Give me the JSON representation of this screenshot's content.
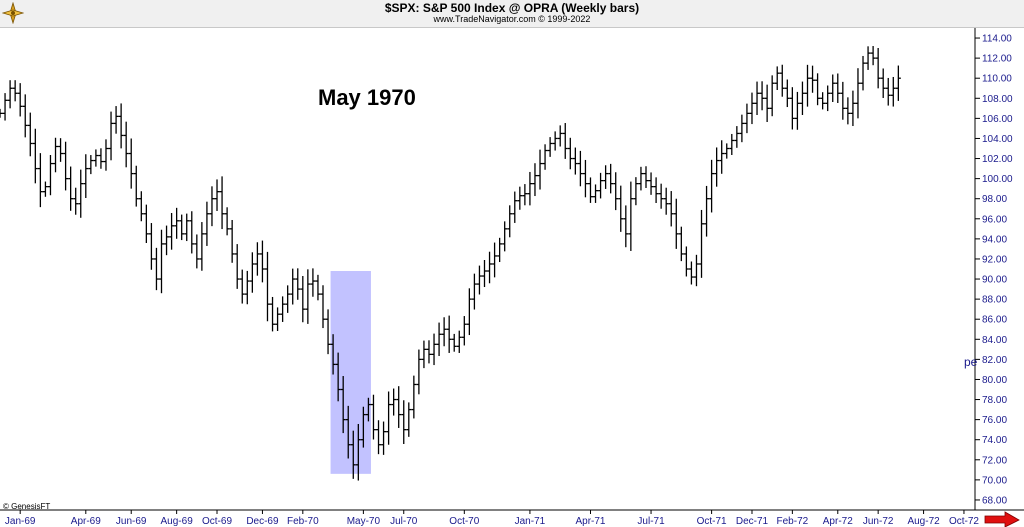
{
  "header": {
    "title": "$SPX:  S&P 500 Index @ OPRA  (Weekly bars)",
    "subtitle": "www.TradeNavigator.com © 1999-2022"
  },
  "icons": {
    "logo": "navigator-compass-icon",
    "scroll_arrow": "red-right-arrow-icon"
  },
  "colors": {
    "highlight": "#c2c2ff",
    "axis_text": "#1a1a8c",
    "bars": "#000000",
    "arrow": "#e01010"
  },
  "chart_data": {
    "type": "ohlc",
    "title": "$SPX:  S&P 500 Index @ OPRA  (Weekly bars)",
    "annotation": "May 1970",
    "footer": "© GenesisFT",
    "edge_label": "pe",
    "ylim": [
      67,
      115
    ],
    "y_ticks": [
      "68.00",
      "70.00",
      "72.00",
      "74.00",
      "76.00",
      "78.00",
      "80.00",
      "82.00",
      "84.00",
      "86.00",
      "88.00",
      "90.00",
      "92.00",
      "94.00",
      "96.00",
      "98.00",
      "100.00",
      "102.00",
      "104.00",
      "106.00",
      "108.00",
      "110.00",
      "112.00",
      "114.00"
    ],
    "x_ticks": [
      {
        "label": "Jan-69",
        "week": 5
      },
      {
        "label": "Apr-69",
        "week": 18
      },
      {
        "label": "Jun-69",
        "week": 27
      },
      {
        "label": "Aug-69",
        "week": 36
      },
      {
        "label": "Oct-69",
        "week": 44
      },
      {
        "label": "Dec-69",
        "week": 53
      },
      {
        "label": "Feb-70",
        "week": 61
      },
      {
        "label": "May-70",
        "week": 73
      },
      {
        "label": "Jul-70",
        "week": 81
      },
      {
        "label": "Oct-70",
        "week": 93
      },
      {
        "label": "Jan-71",
        "week": 106
      },
      {
        "label": "Apr-71",
        "week": 118
      },
      {
        "label": "Jul-71",
        "week": 130
      },
      {
        "label": "Oct-71",
        "week": 142
      },
      {
        "label": "Dec-71",
        "week": 150
      },
      {
        "label": "Feb-72",
        "week": 158
      },
      {
        "label": "Apr-72",
        "week": 167
      },
      {
        "label": "Jun-72",
        "week": 175
      },
      {
        "label": "Aug-72",
        "week": 184
      },
      {
        "label": "Oct-72",
        "week": 192
      }
    ],
    "highlight": {
      "week_start": 66.5,
      "week_end": 74.5,
      "low": 70.6,
      "high": 90.8
    },
    "weekly_close": [
      106.5,
      107.8,
      109.0,
      108.5,
      107.2,
      105.3,
      103.5,
      101.0,
      98.7,
      99.2,
      101.5,
      103.2,
      102.5,
      100.0,
      98.0,
      97.5,
      99.5,
      101.0,
      101.8,
      102.3,
      101.7,
      103.0,
      105.5,
      106.2,
      104.3,
      102.5,
      100.5,
      98.0,
      96.5,
      94.5,
      92.0,
      90.0,
      93.5,
      94.2,
      95.3,
      95.8,
      94.5,
      95.8,
      93.5,
      92.0,
      94.5,
      96.5,
      98.0,
      98.7,
      96.5,
      95.0,
      92.5,
      90.0,
      88.5,
      89.8,
      91.5,
      92.5,
      91.0,
      87.5,
      85.5,
      86.5,
      87.5,
      88.5,
      90.0,
      89.0,
      87.0,
      89.5,
      89.8,
      88.5,
      86.0,
      83.5,
      81.5,
      79.0,
      76.0,
      73.5,
      71.5,
      74.0,
      76.5,
      77.5,
      75.0,
      73.5,
      74.8,
      77.5,
      78.0,
      76.5,
      75.0,
      77.0,
      79.5,
      82.0,
      83.0,
      82.5,
      83.5,
      84.5,
      85.0,
      84.0,
      83.3,
      84.2,
      85.5,
      88.0,
      89.5,
      90.3,
      90.8,
      91.5,
      92.3,
      93.5,
      95.0,
      96.5,
      97.8,
      98.3,
      98.5,
      99.5,
      100.3,
      101.5,
      102.8,
      103.5,
      104.0,
      104.5,
      103.0,
      102.0,
      101.5,
      100.5,
      99.5,
      98.2,
      98.8,
      99.8,
      100.5,
      99.5,
      98.0,
      96.0,
      94.5,
      98.0,
      99.5,
      100.5,
      99.8,
      99.2,
      98.5,
      98.0,
      97.5,
      96.5,
      94.5,
      92.5,
      91.0,
      90.2,
      91.5,
      95.5,
      98.0,
      100.5,
      101.8,
      102.5,
      103.0,
      103.8,
      104.5,
      105.5,
      106.5,
      107.5,
      108.5,
      108.0,
      107.0,
      109.5,
      110.5,
      109.0,
      108.0,
      106.0,
      107.5,
      108.5,
      110.0,
      109.8,
      108.0,
      107.5,
      108.5,
      109.5,
      108.5,
      107.0,
      106.5,
      107.5,
      109.5,
      111.5,
      112.5,
      112.0,
      110.0,
      109.0,
      108.3,
      109.0,
      110.0
    ]
  }
}
